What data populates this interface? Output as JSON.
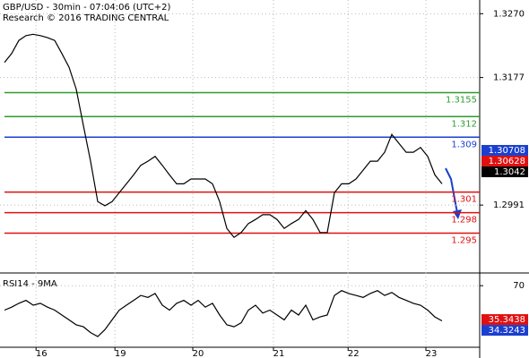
{
  "chart_data": [
    {
      "type": "line",
      "title": "GBP/USD - 30min - 07:04:06 (UTC+2)",
      "subtitle": "Research © 2016 TRADING CENTRAL",
      "xlim": [
        -0.625,
        66.25
      ],
      "ylim": [
        1.2892,
        1.329
      ],
      "yticks": [
        {
          "value": 1.327,
          "label": "1.3270"
        },
        1.3177,
        1.2991
      ],
      "x": [
        0,
        1,
        2,
        3,
        4,
        5,
        6,
        7,
        8,
        9,
        10,
        11,
        12,
        13,
        14,
        15,
        16,
        17,
        18,
        19,
        20,
        21,
        22,
        23,
        24,
        25,
        26,
        27,
        28,
        29,
        30,
        31,
        32,
        33,
        34,
        35,
        36,
        37,
        38,
        39,
        40,
        41,
        42,
        43,
        44,
        45,
        46,
        47,
        48,
        49,
        50,
        51,
        52,
        53,
        54,
        55,
        56,
        57,
        58,
        59,
        60,
        61
      ],
      "series": [
        {
          "color": "#000000",
          "values": [
            1.3199,
            1.3212,
            1.3231,
            1.3238,
            1.324,
            1.3238,
            1.3235,
            1.3231,
            1.3212,
            1.3192,
            1.316,
            1.3107,
            1.3055,
            1.2996,
            1.299,
            1.2996,
            1.3009,
            1.3022,
            1.3035,
            1.3049,
            1.3055,
            1.3062,
            1.3049,
            1.3035,
            1.3022,
            1.3022,
            1.3029,
            1.3029,
            1.3029,
            1.3022,
            1.2996,
            1.2957,
            1.2944,
            1.2951,
            1.2964,
            1.297,
            1.2977,
            1.2977,
            1.297,
            1.2957,
            1.2964,
            1.297,
            1.2983,
            1.297,
            1.2951,
            1.2951,
            1.3009,
            1.3022,
            1.3022,
            1.3029,
            1.3042,
            1.3055,
            1.3055,
            1.3068,
            1.3094,
            1.3081,
            1.3068,
            1.3068,
            1.3075,
            1.3062,
            1.3035,
            1.3022
          ]
        }
      ],
      "levels": [
        {
          "value": 1.3155,
          "color": "#2e9b2e"
        },
        {
          "value": 1.312,
          "color": "#2e9b2e"
        },
        {
          "value": 1.309,
          "color": "#1a3fcf"
        },
        {
          "value": 1.301,
          "color": "#e01010"
        },
        {
          "value": 1.298,
          "color": "#e01010"
        },
        {
          "value": 1.295,
          "color": "#e01010"
        }
      ],
      "markers": [
        {
          "value": 1.30708,
          "color": "#1a3fcf"
        },
        {
          "value": 1.30628,
          "color": "#e01010"
        },
        {
          "value": 1.3042,
          "color": "#000000"
        }
      ]
    },
    {
      "type": "line",
      "title": "RSI14 - 9MA",
      "xlim": [
        -0.625,
        66.25
      ],
      "ylim": [
        7,
        83
      ],
      "yticks": [
        70
      ],
      "xticks": [
        {
          "value": 4.4,
          "label": "16"
        },
        {
          "value": 15.4,
          "label": "19"
        },
        {
          "value": 26.25,
          "label": "20"
        },
        {
          "value": 37.5,
          "label": "21"
        },
        {
          "value": 47.9,
          "label": "22"
        },
        {
          "value": 58.75,
          "label": "23"
        }
      ],
      "x": [
        0,
        1,
        2,
        3,
        4,
        5,
        6,
        7,
        8,
        9,
        10,
        11,
        12,
        13,
        14,
        15,
        16,
        17,
        18,
        19,
        20,
        21,
        22,
        23,
        24,
        25,
        26,
        27,
        28,
        29,
        30,
        31,
        32,
        33,
        34,
        35,
        36,
        37,
        38,
        39,
        40,
        41,
        42,
        43,
        44,
        45,
        46,
        47,
        48,
        49,
        50,
        51,
        52,
        53,
        54,
        55,
        56,
        57,
        58,
        59,
        60,
        61
      ],
      "series": [
        {
          "color": "#000000",
          "values": [
            45,
            48,
            52,
            55,
            50,
            52,
            48,
            45,
            40,
            35,
            30,
            28,
            22,
            18,
            25,
            35,
            45,
            50,
            55,
            60,
            58,
            62,
            50,
            45,
            52,
            55,
            50,
            55,
            48,
            52,
            40,
            30,
            28,
            32,
            45,
            50,
            42,
            45,
            40,
            35,
            45,
            40,
            50,
            35,
            38,
            40,
            60,
            65,
            62,
            60,
            58,
            62,
            65,
            60,
            63,
            58,
            55,
            52,
            50,
            45,
            38,
            34
          ]
        }
      ],
      "markers": [
        {
          "value": 35.3438,
          "color": "#e01010"
        },
        {
          "value": 34.3243,
          "color": "#1a3fcf"
        }
      ]
    }
  ]
}
